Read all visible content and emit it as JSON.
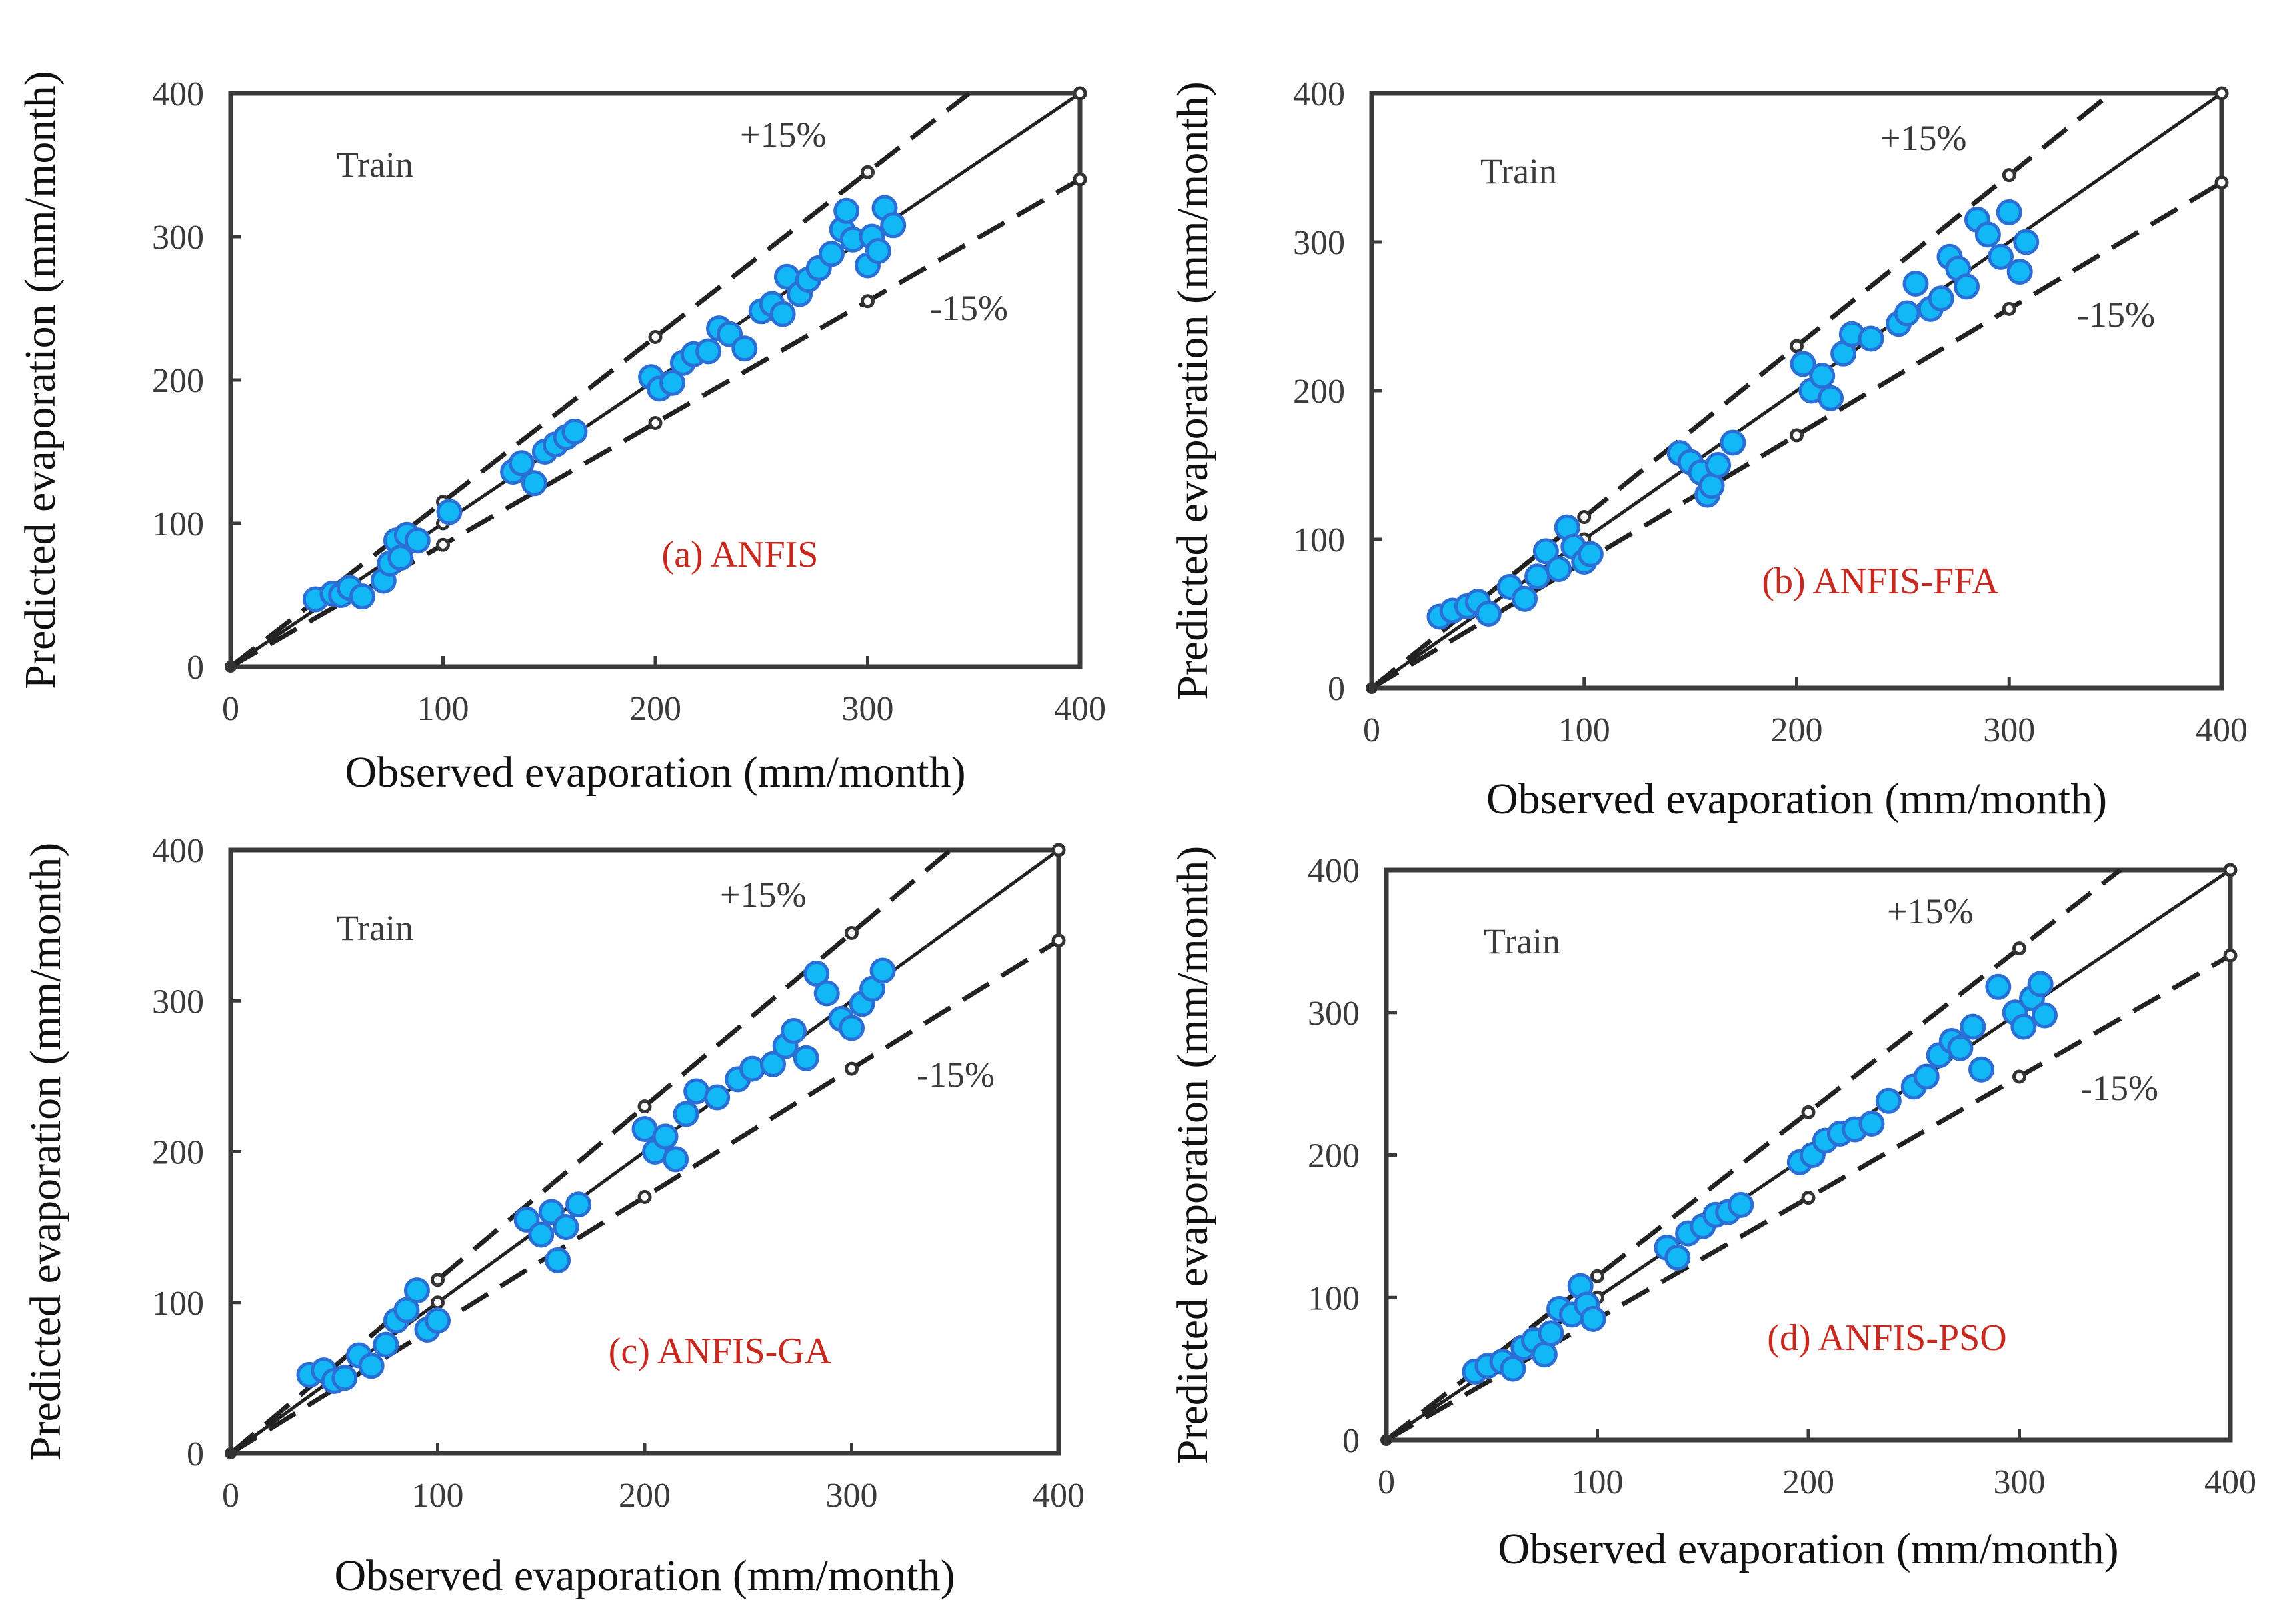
{
  "colors": {
    "point_fill": "#12b7f5",
    "point_edge": "#2a6fd6",
    "model_label": "#c8281e",
    "axis": "#3a3a3a"
  },
  "chart_data": [
    {
      "type": "scatter",
      "label": "(a) ANFIS",
      "annotation": "Train",
      "upper_band_label": "+15%",
      "lower_band_label": "-15%",
      "xlabel": "Observed evaporation (mm/month)",
      "ylabel": "Predicted evaporation (mm/month)",
      "xlim": [
        0,
        400
      ],
      "ylim": [
        0,
        400
      ],
      "xticks": [
        "0",
        "100",
        "200",
        "300",
        "400"
      ],
      "yticks": [
        "0",
        "100",
        "200",
        "300",
        "400"
      ],
      "reference_lines": [
        "1:1",
        "+15%",
        "-15%"
      ],
      "x": [
        40,
        48,
        52,
        56,
        62,
        72,
        75,
        78,
        80,
        83,
        88,
        103,
        133,
        137,
        143,
        148,
        153,
        158,
        162,
        198,
        202,
        208,
        213,
        218,
        225,
        230,
        235,
        242,
        250,
        255,
        260,
        262,
        268,
        272,
        277,
        283,
        288,
        290,
        293,
        300,
        302,
        305,
        308,
        312
      ],
      "y": [
        47,
        51,
        50,
        55,
        49,
        60,
        72,
        88,
        76,
        92,
        88,
        108,
        136,
        142,
        128,
        150,
        155,
        160,
        164,
        202,
        194,
        198,
        212,
        218,
        220,
        236,
        232,
        222,
        248,
        253,
        246,
        272,
        260,
        270,
        278,
        288,
        305,
        318,
        298,
        280,
        300,
        290,
        320,
        308
      ]
    },
    {
      "type": "scatter",
      "label": "(b) ANFIS-FFA",
      "annotation": "Train",
      "upper_band_label": "+15%",
      "lower_band_label": "-15%",
      "xlabel": "Observed evaporation (mm/month)",
      "ylabel": "Predicted evaporation (mm/month)",
      "xlim": [
        0,
        400
      ],
      "ylim": [
        0,
        400
      ],
      "xticks": [
        "0",
        "100",
        "200",
        "300",
        "400"
      ],
      "yticks": [
        "0",
        "100",
        "200",
        "300",
        "400"
      ],
      "reference_lines": [
        "1:1",
        "+15%",
        "-15%"
      ],
      "x": [
        32,
        38,
        45,
        50,
        55,
        65,
        72,
        78,
        82,
        88,
        92,
        95,
        100,
        103,
        145,
        150,
        155,
        158,
        160,
        163,
        170,
        203,
        207,
        212,
        216,
        222,
        226,
        235,
        248,
        252,
        256,
        263,
        268,
        272,
        276,
        280,
        285,
        290,
        296,
        300,
        305,
        308
      ],
      "y": [
        48,
        52,
        55,
        58,
        50,
        68,
        60,
        75,
        92,
        80,
        108,
        95,
        85,
        90,
        158,
        152,
        145,
        130,
        136,
        150,
        165,
        218,
        200,
        210,
        195,
        225,
        238,
        235,
        245,
        252,
        272,
        255,
        262,
        290,
        282,
        270,
        315,
        305,
        290,
        320,
        280,
        300
      ]
    },
    {
      "type": "scatter",
      "label": "(c) ANFIS-GA",
      "annotation": "Train",
      "upper_band_label": "+15%",
      "lower_band_label": "-15%",
      "xlabel": "Observed evaporation (mm/month)",
      "ylabel": "Predicted evaporation (mm/month)",
      "xlim": [
        0,
        400
      ],
      "ylim": [
        0,
        400
      ],
      "xticks": [
        "0",
        "100",
        "200",
        "300",
        "400"
      ],
      "yticks": [
        "0",
        "100",
        "200",
        "300",
        "400"
      ],
      "reference_lines": [
        "1:1",
        "+15%",
        "-15%"
      ],
      "x": [
        38,
        45,
        50,
        55,
        62,
        68,
        75,
        80,
        85,
        90,
        95,
        100,
        143,
        150,
        155,
        158,
        162,
        168,
        200,
        205,
        210,
        215,
        220,
        225,
        235,
        245,
        252,
        262,
        268,
        272,
        278,
        283,
        288,
        295,
        300,
        305,
        310,
        315
      ],
      "y": [
        52,
        55,
        48,
        50,
        65,
        58,
        72,
        88,
        95,
        108,
        82,
        88,
        155,
        145,
        160,
        128,
        150,
        165,
        215,
        200,
        210,
        195,
        225,
        240,
        236,
        248,
        255,
        258,
        270,
        280,
        262,
        318,
        305,
        288,
        282,
        298,
        308,
        320
      ]
    },
    {
      "type": "scatter",
      "label": "(d) ANFIS-PSO",
      "annotation": "Train",
      "upper_band_label": "+15%",
      "lower_band_label": "-15%",
      "xlabel": "Observed evaporation (mm/month)",
      "ylabel": "Predicted evaporation (mm/month)",
      "xlim": [
        0,
        400
      ],
      "ylim": [
        0,
        400
      ],
      "xticks": [
        "0",
        "100",
        "200",
        "300",
        "400"
      ],
      "yticks": [
        "0",
        "100",
        "200",
        "300",
        "400"
      ],
      "reference_lines": [
        "1:1",
        "+15%",
        "-15%"
      ],
      "x": [
        42,
        48,
        55,
        60,
        65,
        70,
        75,
        78,
        82,
        88,
        92,
        95,
        98,
        133,
        138,
        143,
        150,
        156,
        162,
        168,
        196,
        202,
        208,
        215,
        222,
        230,
        238,
        250,
        256,
        262,
        268,
        272,
        278,
        282,
        290,
        298,
        302,
        306,
        310,
        312
      ],
      "y": [
        48,
        52,
        55,
        50,
        65,
        70,
        60,
        75,
        92,
        88,
        108,
        95,
        85,
        135,
        128,
        145,
        150,
        158,
        160,
        165,
        195,
        200,
        210,
        215,
        218,
        222,
        238,
        248,
        255,
        270,
        280,
        275,
        290,
        260,
        318,
        300,
        290,
        310,
        320,
        298
      ]
    }
  ]
}
